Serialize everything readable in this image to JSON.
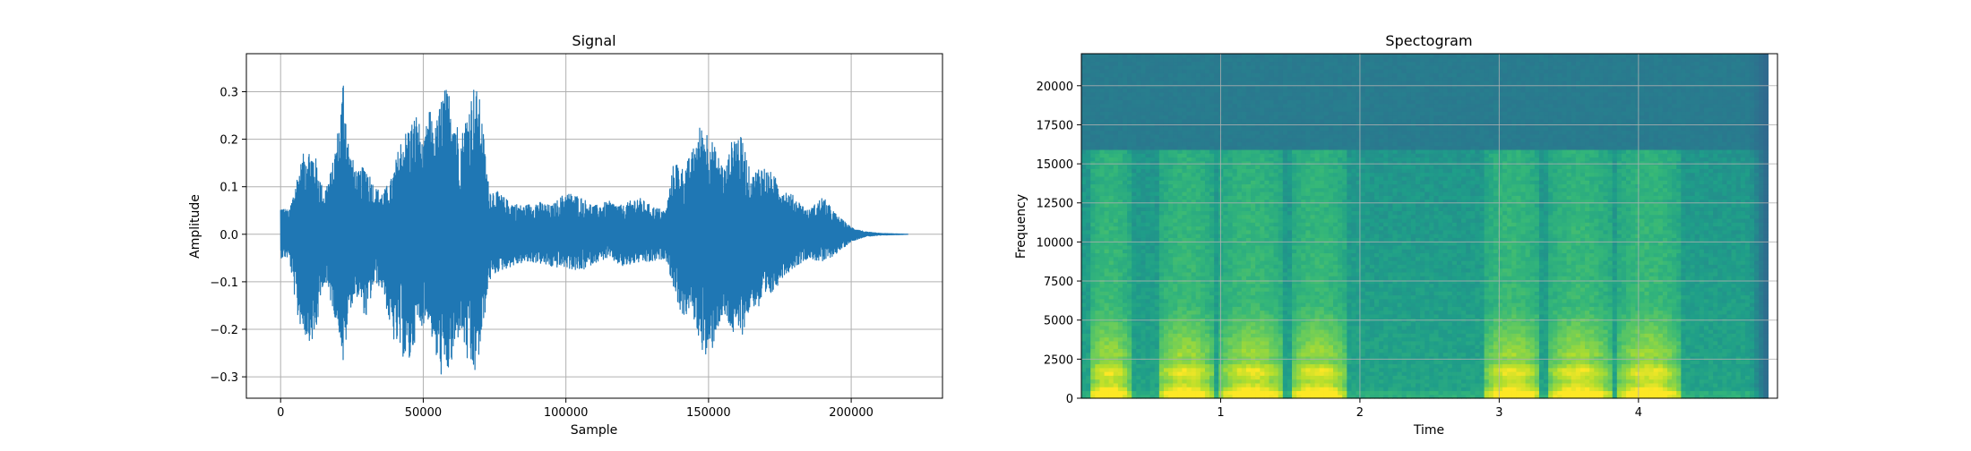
{
  "chart_data": [
    {
      "type": "line",
      "title": "Signal",
      "xlabel": "Sample",
      "ylabel": "Amplitude",
      "xlim": [
        -12000,
        232000
      ],
      "ylim": [
        -0.345,
        0.38
      ],
      "grid": true,
      "x_ticks": [
        {
          "value": 0,
          "label": "0"
        },
        {
          "value": 50000,
          "label": "50000"
        },
        {
          "value": 100000,
          "label": "100000"
        },
        {
          "value": 150000,
          "label": "150000"
        },
        {
          "value": 200000,
          "label": "200000"
        }
      ],
      "y_ticks": [
        {
          "value": -0.3,
          "label": "−0.3"
        },
        {
          "value": -0.2,
          "label": "−0.2"
        },
        {
          "value": -0.1,
          "label": "−0.1"
        },
        {
          "value": 0.0,
          "label": "0.0"
        },
        {
          "value": 0.1,
          "label": "0.1"
        },
        {
          "value": 0.2,
          "label": "0.2"
        },
        {
          "value": 0.3,
          "label": "0.3"
        }
      ],
      "series": [
        {
          "color": "#1f77b4",
          "envelope": {
            "x": [
              0,
              3000,
              6000,
              9000,
              12000,
              15000,
              18000,
              21000,
              22000,
              24000,
              27000,
              30000,
              33000,
              36000,
              39000,
              42000,
              45000,
              48000,
              50000,
              52000,
              54000,
              57000,
              60000,
              63000,
              66000,
              68000,
              70000,
              73000,
              76000,
              80000,
              85000,
              90000,
              95000,
              100000,
              105000,
              110000,
              115000,
              120000,
              125000,
              130000,
              135000,
              138000,
              141000,
              144000,
              147000,
              150000,
              153000,
              156000,
              159000,
              162000,
              165000,
              168000,
              172000,
              176000,
              180000,
              185000,
              190000,
              195000,
              200000,
              205000,
              210000,
              215000,
              220000
            ],
            "upper": [
              0.06,
              0.05,
              0.13,
              0.19,
              0.17,
              0.09,
              0.14,
              0.26,
              0.345,
              0.18,
              0.13,
              0.15,
              0.1,
              0.09,
              0.12,
              0.2,
              0.23,
              0.26,
              0.18,
              0.27,
              0.22,
              0.31,
              0.3,
              0.2,
              0.28,
              0.32,
              0.28,
              0.1,
              0.09,
              0.07,
              0.06,
              0.07,
              0.06,
              0.09,
              0.08,
              0.06,
              0.07,
              0.06,
              0.08,
              0.06,
              0.05,
              0.16,
              0.14,
              0.17,
              0.23,
              0.22,
              0.17,
              0.14,
              0.22,
              0.2,
              0.12,
              0.15,
              0.13,
              0.1,
              0.08,
              0.05,
              0.08,
              0.04,
              0.015,
              0.005,
              0.002,
              0.001,
              0.0
            ],
            "lower": [
              -0.05,
              -0.05,
              -0.18,
              -0.22,
              -0.23,
              -0.1,
              -0.15,
              -0.22,
              -0.29,
              -0.16,
              -0.13,
              -0.18,
              -0.1,
              -0.12,
              -0.22,
              -0.25,
              -0.28,
              -0.2,
              -0.19,
              -0.18,
              -0.26,
              -0.31,
              -0.28,
              -0.2,
              -0.29,
              -0.3,
              -0.25,
              -0.1,
              -0.08,
              -0.07,
              -0.06,
              -0.06,
              -0.07,
              -0.07,
              -0.08,
              -0.06,
              -0.05,
              -0.07,
              -0.06,
              -0.06,
              -0.05,
              -0.12,
              -0.18,
              -0.16,
              -0.23,
              -0.28,
              -0.2,
              -0.18,
              -0.22,
              -0.21,
              -0.15,
              -0.16,
              -0.13,
              -0.09,
              -0.07,
              -0.05,
              -0.06,
              -0.04,
              -0.015,
              -0.005,
              -0.002,
              -0.001,
              0.0
            ]
          }
        }
      ]
    },
    {
      "type": "heatmap",
      "title": "Spectogram",
      "xlabel": "Time",
      "ylabel": "Frequency",
      "xlim": [
        0.0,
        4.998
      ],
      "ylim": [
        0,
        22050
      ],
      "grid": true,
      "data_x_end": 4.93,
      "x_ticks": [
        {
          "value": 1,
          "label": "1"
        },
        {
          "value": 2,
          "label": "2"
        },
        {
          "value": 3,
          "label": "3"
        },
        {
          "value": 4,
          "label": "4"
        }
      ],
      "y_ticks": [
        {
          "value": 0,
          "label": "0"
        },
        {
          "value": 2500,
          "label": "2500"
        },
        {
          "value": 5000,
          "label": "5000"
        },
        {
          "value": 7500,
          "label": "7500"
        },
        {
          "value": 10000,
          "label": "10000"
        },
        {
          "value": 12500,
          "label": "12500"
        },
        {
          "value": 15000,
          "label": "15000"
        },
        {
          "value": 17500,
          "label": "17500"
        },
        {
          "value": 20000,
          "label": "20000"
        }
      ],
      "colormap": "viridis",
      "cutoff_frequency": 16000,
      "loud_segments": [
        [
          0.05,
          0.35
        ],
        [
          0.55,
          0.95
        ],
        [
          1.0,
          1.45
        ],
        [
          1.5,
          1.9
        ],
        [
          2.9,
          3.3
        ],
        [
          3.35,
          3.8
        ],
        [
          3.85,
          4.3
        ]
      ]
    }
  ]
}
